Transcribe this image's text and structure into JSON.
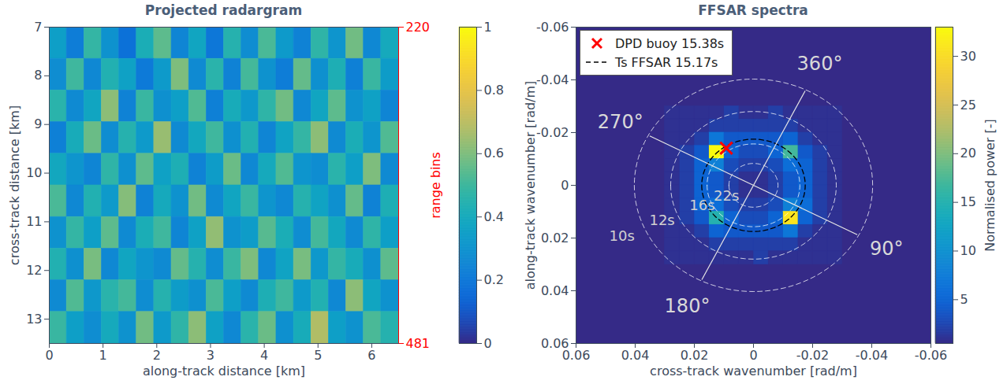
{
  "chart_data": [
    {
      "type": "heatmap",
      "title": "Projected radargram",
      "x_label": "along-track distance [km]",
      "y_label": "cross-track distance [km]",
      "y2_label": "range bins",
      "xlim": [
        0,
        6.5
      ],
      "xticks": [
        0,
        1,
        2,
        3,
        4,
        5,
        6
      ],
      "ylim": [
        13.5,
        7
      ],
      "yticks": [
        7,
        8,
        9,
        10,
        11,
        12,
        13
      ],
      "y2lim": [
        481,
        220
      ],
      "y2ticks": [
        220,
        481
      ],
      "x": [
        0.1625,
        0.4875,
        0.8125,
        1.1375,
        1.4625,
        1.7875,
        2.1125,
        2.4375,
        2.7625,
        3.0875,
        3.4125,
        3.7375,
        4.0625,
        4.3875,
        4.7125,
        5.0375,
        5.3625,
        5.6875,
        6.0125,
        6.3375
      ],
      "y": [
        7.325,
        7.975,
        8.625,
        9.275,
        9.925,
        10.575,
        11.225,
        11.875,
        12.525,
        13.175
      ],
      "values": [
        [
          0.35,
          0.22,
          0.48,
          0.3,
          0.18,
          0.42,
          0.55,
          0.25,
          0.38,
          0.2,
          0.45,
          0.28,
          0.52,
          0.33,
          0.24,
          0.47,
          0.31,
          0.58,
          0.26,
          0.4
        ],
        [
          0.28,
          0.5,
          0.26,
          0.44,
          0.36,
          0.21,
          0.33,
          0.6,
          0.27,
          0.46,
          0.24,
          0.51,
          0.3,
          0.22,
          0.56,
          0.29,
          0.43,
          0.23,
          0.49,
          0.34
        ],
        [
          0.46,
          0.27,
          0.38,
          0.62,
          0.24,
          0.49,
          0.29,
          0.35,
          0.53,
          0.23,
          0.41,
          0.32,
          0.47,
          0.58,
          0.26,
          0.38,
          0.55,
          0.3,
          0.36,
          0.25
        ],
        [
          0.23,
          0.41,
          0.57,
          0.28,
          0.45,
          0.33,
          0.64,
          0.27,
          0.39,
          0.5,
          0.29,
          0.44,
          0.25,
          0.37,
          0.48,
          0.62,
          0.27,
          0.42,
          0.31,
          0.53
        ],
        [
          0.39,
          0.31,
          0.25,
          0.47,
          0.29,
          0.55,
          0.36,
          0.43,
          0.24,
          0.34,
          0.57,
          0.26,
          0.4,
          0.53,
          0.31,
          0.28,
          0.46,
          0.35,
          0.6,
          0.27
        ],
        [
          0.52,
          0.26,
          0.44,
          0.33,
          0.61,
          0.24,
          0.4,
          0.3,
          0.58,
          0.27,
          0.38,
          0.49,
          0.31,
          0.26,
          0.45,
          0.37,
          0.29,
          0.56,
          0.24,
          0.43
        ],
        [
          0.3,
          0.48,
          0.35,
          0.55,
          0.27,
          0.42,
          0.5,
          0.25,
          0.36,
          0.63,
          0.3,
          0.34,
          0.54,
          0.42,
          0.28,
          0.51,
          0.39,
          0.27,
          0.47,
          0.35
        ],
        [
          0.44,
          0.29,
          0.59,
          0.26,
          0.38,
          0.31,
          0.27,
          0.56,
          0.45,
          0.28,
          0.49,
          0.6,
          0.26,
          0.37,
          0.59,
          0.32,
          0.48,
          0.41,
          0.29,
          0.55
        ],
        [
          0.27,
          0.53,
          0.32,
          0.46,
          0.51,
          0.28,
          0.45,
          0.34,
          0.29,
          0.52,
          0.35,
          0.27,
          0.43,
          0.5,
          0.33,
          0.44,
          0.26,
          0.62,
          0.38,
          0.3
        ],
        [
          0.49,
          0.35,
          0.28,
          0.4,
          0.3,
          0.58,
          0.33,
          0.47,
          0.62,
          0.36,
          0.26,
          0.46,
          0.57,
          0.29,
          0.41,
          0.68,
          0.35,
          0.3,
          0.52,
          0.45
        ]
      ],
      "colorbar": {
        "lim": [
          0,
          1
        ],
        "ticks": [
          0,
          0.2,
          0.4,
          0.6,
          0.8,
          1
        ]
      }
    },
    {
      "type": "heatmap",
      "title": "FFSAR spectra",
      "x_label": "cross-track wavenumber [rad/m]",
      "y_label": "along-track wavenumber [rad/m]",
      "xlim": [
        0.06,
        -0.06
      ],
      "xticks": [
        0.06,
        0.04,
        0.02,
        0,
        -0.02,
        -0.04,
        -0.06
      ],
      "ylim": [
        0.06,
        -0.06
      ],
      "yticks": [
        -0.06,
        -0.04,
        -0.02,
        0,
        0.02,
        0.04,
        0.06
      ],
      "x": [
        -0.0275,
        -0.0225,
        -0.0175,
        -0.0125,
        -0.0075,
        -0.0025,
        0.0025,
        0.0075,
        0.0125,
        0.0175,
        0.0225,
        0.0275
      ],
      "y": [
        -0.0275,
        -0.0225,
        -0.0175,
        -0.0125,
        -0.0075,
        -0.0025,
        0.0025,
        0.0075,
        0.0125,
        0.0175,
        0.0225,
        0.0275
      ],
      "values": [
        [
          1,
          1,
          1,
          1,
          2,
          1,
          1,
          2,
          1,
          1,
          1,
          1
        ],
        [
          1,
          1,
          1,
          2,
          2,
          2,
          2,
          2,
          2,
          1,
          1,
          1
        ],
        [
          1,
          1,
          2,
          5,
          4,
          4,
          4,
          4,
          7,
          2,
          1,
          1
        ],
        [
          1,
          2,
          4,
          17,
          5,
          3,
          3,
          5,
          33,
          4,
          2,
          1
        ],
        [
          1,
          2,
          5,
          6,
          3,
          2,
          2,
          3,
          8,
          5,
          2,
          1
        ],
        [
          1,
          2,
          5,
          4,
          2,
          1,
          1,
          2,
          4,
          5,
          2,
          1
        ],
        [
          1,
          2,
          5,
          4,
          2,
          1,
          1,
          2,
          4,
          5,
          2,
          1
        ],
        [
          1,
          2,
          6,
          8,
          3,
          2,
          2,
          3,
          6,
          5,
          2,
          1
        ],
        [
          1,
          2,
          5,
          31,
          5,
          3,
          3,
          5,
          15,
          4,
          2,
          1
        ],
        [
          1,
          1,
          2,
          7,
          4,
          4,
          4,
          4,
          5,
          2,
          1,
          1
        ],
        [
          1,
          1,
          1,
          2,
          2,
          2,
          2,
          2,
          2,
          1,
          1,
          1
        ],
        [
          1,
          1,
          1,
          1,
          1,
          2,
          1,
          1,
          1,
          1,
          1,
          1
        ]
      ],
      "colorbar": {
        "label": "Normalised power [-]",
        "lim": [
          0.5,
          33
        ],
        "ticks": [
          5,
          10,
          15,
          20,
          25,
          30
        ]
      },
      "circles": [
        {
          "label": "10s",
          "radius": 0.0403
        },
        {
          "label": "12s",
          "radius": 0.028
        },
        {
          "label": "16s",
          "radius": 0.0157
        },
        {
          "label": "22s",
          "radius": 0.0083
        }
      ],
      "directions": [
        {
          "label": "360°",
          "kx": -0.0224,
          "ky": -0.0459
        },
        {
          "label": "90°",
          "kx": -0.045,
          "ky": 0.024
        },
        {
          "label": "180°",
          "kx": 0.0224,
          "ky": 0.0459
        },
        {
          "label": "270°",
          "kx": 0.045,
          "ky": -0.024
        }
      ],
      "series": [
        {
          "name": "DPD buoy 15.38s",
          "color": "red",
          "marker": "x",
          "kx": 0.0092,
          "ky": -0.0141
        },
        {
          "name": "Ts FFSAR 15.17s",
          "color": "black",
          "line_style": "dashed",
          "radius": 0.0175
        }
      ],
      "legend": "top-left"
    }
  ]
}
